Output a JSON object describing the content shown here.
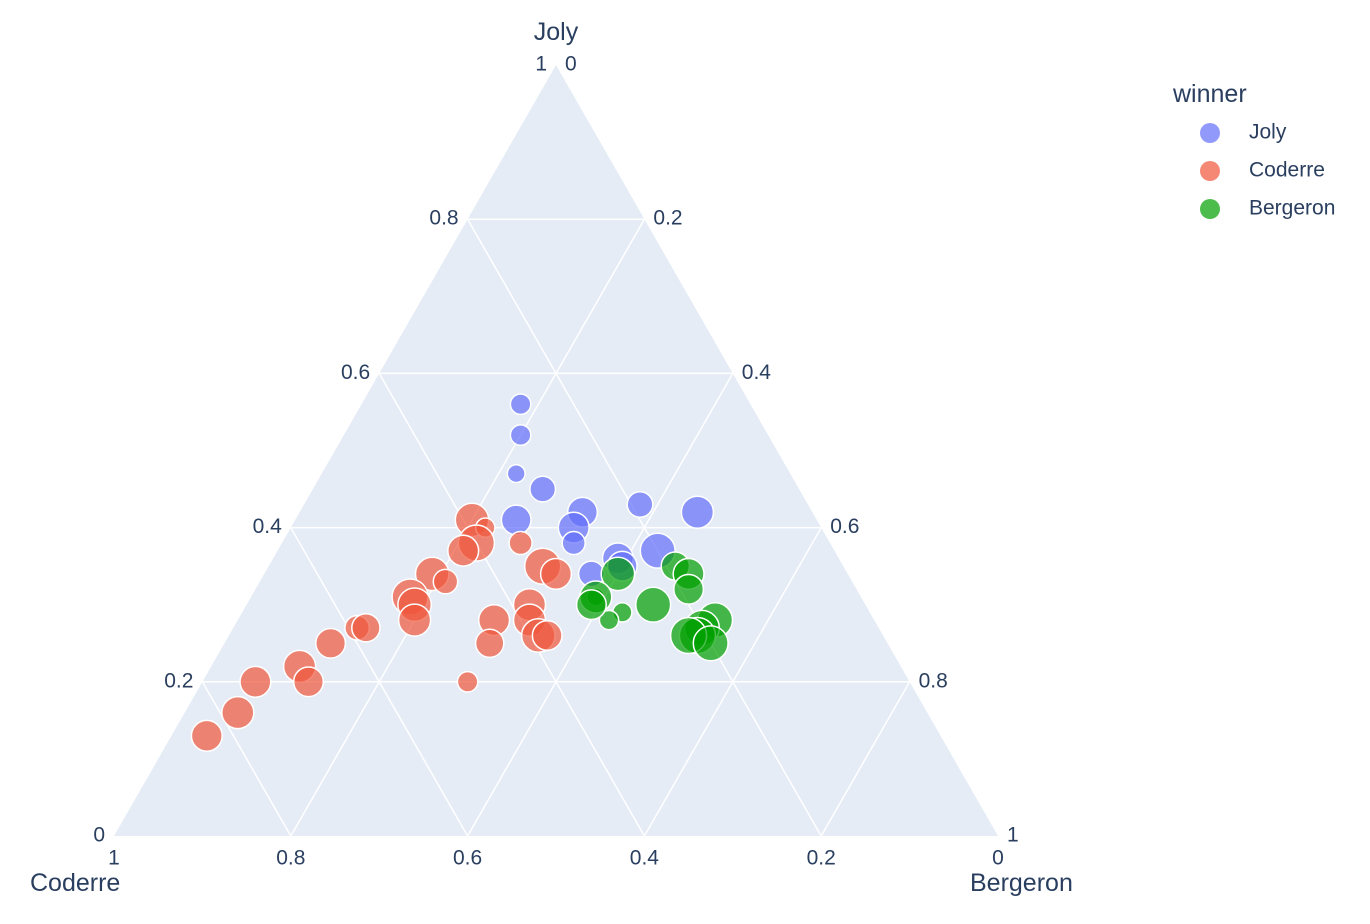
{
  "chart_data": {
    "type": "scatter",
    "subtype": "ternary",
    "title": "",
    "axes": {
      "a": {
        "title": "Joly",
        "ticks": [
          "0",
          "0.2",
          "0.4",
          "0.6",
          "0.8",
          "1"
        ]
      },
      "b": {
        "title": "Coderre",
        "ticks": [
          "0",
          "0.2",
          "0.4",
          "0.6",
          "0.8",
          "1"
        ]
      },
      "c": {
        "title": "Bergeron",
        "ticks": [
          "0",
          "0.2",
          "0.4",
          "0.6",
          "0.8",
          "1"
        ]
      }
    },
    "background_color": "#E5ECF6",
    "grid": true,
    "legend": {
      "title": "winner",
      "placement": "top-right"
    },
    "series": [
      {
        "name": "Joly",
        "color": "#636EFA",
        "points": [
          {
            "a": 0.56,
            "c": 0.18,
            "size": 0.4
          },
          {
            "a": 0.52,
            "c": 0.2,
            "size": 0.4
          },
          {
            "a": 0.47,
            "c": 0.22,
            "size": 0.3
          },
          {
            "a": 0.45,
            "c": 0.26,
            "size": 0.6
          },
          {
            "a": 0.41,
            "c": 0.25,
            "size": 0.75
          },
          {
            "a": 0.42,
            "c": 0.32,
            "size": 0.75
          },
          {
            "a": 0.4,
            "c": 0.32,
            "size": 0.8
          },
          {
            "a": 0.43,
            "c": 0.38,
            "size": 0.6
          },
          {
            "a": 0.42,
            "c": 0.45,
            "size": 0.85
          },
          {
            "a": 0.38,
            "c": 0.33,
            "size": 0.5
          },
          {
            "a": 0.37,
            "c": 0.43,
            "size": 0.95
          },
          {
            "a": 0.36,
            "c": 0.39,
            "size": 0.8
          },
          {
            "a": 0.35,
            "c": 0.4,
            "size": 0.75
          },
          {
            "a": 0.34,
            "c": 0.37,
            "size": 0.6
          }
        ]
      },
      {
        "name": "Coderre",
        "color": "#EF553B",
        "points": [
          {
            "a": 0.41,
            "c": 0.2,
            "size": 0.9
          },
          {
            "a": 0.4,
            "c": 0.22,
            "size": 0.35
          },
          {
            "a": 0.38,
            "c": 0.22,
            "size": 1.0
          },
          {
            "a": 0.37,
            "c": 0.21,
            "size": 0.8
          },
          {
            "a": 0.38,
            "c": 0.27,
            "size": 0.5
          },
          {
            "a": 0.34,
            "c": 0.19,
            "size": 0.9
          },
          {
            "a": 0.33,
            "c": 0.21,
            "size": 0.55
          },
          {
            "a": 0.31,
            "c": 0.18,
            "size": 1.0
          },
          {
            "a": 0.3,
            "c": 0.19,
            "size": 0.9
          },
          {
            "a": 0.28,
            "c": 0.2,
            "size": 0.85
          },
          {
            "a": 0.27,
            "c": 0.14,
            "size": 0.55
          },
          {
            "a": 0.27,
            "c": 0.15,
            "size": 0.7
          },
          {
            "a": 0.25,
            "c": 0.12,
            "size": 0.75
          },
          {
            "a": 0.22,
            "c": 0.1,
            "size": 0.85
          },
          {
            "a": 0.2,
            "c": 0.12,
            "size": 0.75
          },
          {
            "a": 0.2,
            "c": 0.06,
            "size": 0.8
          },
          {
            "a": 0.16,
            "c": 0.06,
            "size": 0.85
          },
          {
            "a": 0.13,
            "c": 0.04,
            "size": 0.8
          },
          {
            "a": 0.35,
            "c": 0.31,
            "size": 1.0
          },
          {
            "a": 0.34,
            "c": 0.33,
            "size": 0.8
          },
          {
            "a": 0.3,
            "c": 0.32,
            "size": 0.85
          },
          {
            "a": 0.28,
            "c": 0.29,
            "size": 0.8
          },
          {
            "a": 0.28,
            "c": 0.33,
            "size": 0.85
          },
          {
            "a": 0.26,
            "c": 0.35,
            "size": 0.9
          },
          {
            "a": 0.26,
            "c": 0.36,
            "size": 0.75
          },
          {
            "a": 0.25,
            "c": 0.3,
            "size": 0.7
          },
          {
            "a": 0.2,
            "c": 0.3,
            "size": 0.4
          }
        ]
      },
      {
        "name": "Bergeron",
        "color": "#00a000",
        "points": [
          {
            "a": 0.35,
            "c": 0.46,
            "size": 0.7
          },
          {
            "a": 0.34,
            "c": 0.48,
            "size": 0.8
          },
          {
            "a": 0.32,
            "c": 0.49,
            "size": 0.75
          },
          {
            "a": 0.3,
            "c": 0.46,
            "size": 0.95
          },
          {
            "a": 0.29,
            "c": 0.43,
            "size": 0.35
          },
          {
            "a": 0.28,
            "c": 0.42,
            "size": 0.35
          },
          {
            "a": 0.31,
            "c": 0.39,
            "size": 0.3
          },
          {
            "a": 0.34,
            "c": 0.4,
            "size": 0.9
          },
          {
            "a": 0.31,
            "c": 0.39,
            "size": 0.85
          },
          {
            "a": 0.3,
            "c": 0.39,
            "size": 0.75
          },
          {
            "a": 0.28,
            "c": 0.54,
            "size": 0.95
          },
          {
            "a": 0.27,
            "c": 0.53,
            "size": 0.95
          },
          {
            "a": 0.26,
            "c": 0.53,
            "size": 1.0
          },
          {
            "a": 0.26,
            "c": 0.52,
            "size": 1.0
          },
          {
            "a": 0.25,
            "c": 0.55,
            "size": 0.95
          }
        ]
      }
    ]
  }
}
